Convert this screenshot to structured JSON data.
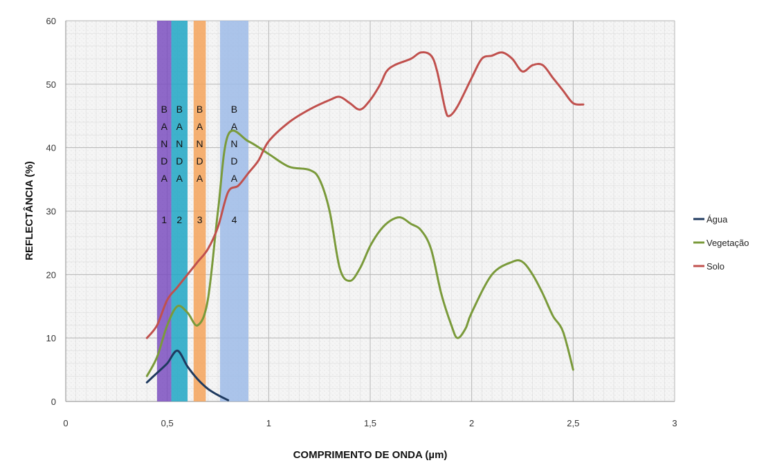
{
  "chart_data": {
    "type": "line",
    "xlabel": "COMPRIMENTO DE ONDA (µm)",
    "ylabel": "REFLECTÂNCIA (%)",
    "xlim": [
      0,
      3
    ],
    "ylim": [
      0,
      60
    ],
    "x_ticks": [
      0,
      0.5,
      1,
      1.5,
      2,
      2.5,
      3
    ],
    "x_tick_labels": [
      "0",
      "0,5",
      "1",
      "1,5",
      "2",
      "2,5",
      "3"
    ],
    "y_ticks": [
      0,
      10,
      20,
      30,
      40,
      50,
      60
    ],
    "y_tick_labels": [
      "0",
      "10",
      "20",
      "30",
      "40",
      "50",
      "60"
    ],
    "grid": true,
    "legend_position": "right",
    "bands": [
      {
        "letters": [
          "B",
          "A",
          "N",
          "D",
          "A"
        ],
        "number": "1",
        "x_start": 0.45,
        "x_end": 0.52,
        "color": "#7b4fbf"
      },
      {
        "letters": [
          "B",
          "A",
          "N",
          "D",
          "A"
        ],
        "number": "2",
        "x_start": 0.52,
        "x_end": 0.6,
        "color": "#1fa6c4"
      },
      {
        "letters": [
          "B",
          "A",
          "N",
          "D",
          "A"
        ],
        "number": "3",
        "x_start": 0.63,
        "x_end": 0.69,
        "color": "#f5a35a"
      },
      {
        "letters": [
          "B",
          "A",
          "N",
          "D",
          "A"
        ],
        "number": "4",
        "x_start": 0.76,
        "x_end": 0.9,
        "color": "#9dbbe8"
      }
    ],
    "series": [
      {
        "name": "Água",
        "color": "#1f3a5f",
        "points": [
          [
            0.4,
            3
          ],
          [
            0.45,
            4.5
          ],
          [
            0.5,
            6
          ],
          [
            0.55,
            8
          ],
          [
            0.6,
            5.5
          ],
          [
            0.65,
            3.5
          ],
          [
            0.7,
            2
          ],
          [
            0.75,
            1
          ],
          [
            0.8,
            0.2
          ]
        ]
      },
      {
        "name": "Vegetação",
        "color": "#7a9a3a",
        "points": [
          [
            0.4,
            4
          ],
          [
            0.45,
            7
          ],
          [
            0.5,
            12
          ],
          [
            0.55,
            15
          ],
          [
            0.6,
            14
          ],
          [
            0.65,
            12
          ],
          [
            0.7,
            16
          ],
          [
            0.75,
            30
          ],
          [
            0.8,
            42
          ],
          [
            0.9,
            41
          ],
          [
            1.0,
            39
          ],
          [
            1.1,
            37
          ],
          [
            1.2,
            36.5
          ],
          [
            1.25,
            35
          ],
          [
            1.3,
            30
          ],
          [
            1.35,
            21
          ],
          [
            1.4,
            19
          ],
          [
            1.45,
            21
          ],
          [
            1.5,
            24.5
          ],
          [
            1.55,
            27
          ],
          [
            1.6,
            28.5
          ],
          [
            1.65,
            29
          ],
          [
            1.7,
            28
          ],
          [
            1.75,
            27
          ],
          [
            1.8,
            24
          ],
          [
            1.85,
            17
          ],
          [
            1.9,
            12
          ],
          [
            1.93,
            10
          ],
          [
            1.97,
            11.5
          ],
          [
            2.0,
            14
          ],
          [
            2.1,
            20
          ],
          [
            2.2,
            22
          ],
          [
            2.25,
            22
          ],
          [
            2.3,
            20
          ],
          [
            2.35,
            17
          ],
          [
            2.4,
            13.5
          ],
          [
            2.45,
            11
          ],
          [
            2.5,
            5
          ]
        ]
      },
      {
        "name": "Solo",
        "color": "#c0504d",
        "points": [
          [
            0.4,
            10
          ],
          [
            0.45,
            12
          ],
          [
            0.5,
            16
          ],
          [
            0.55,
            18
          ],
          [
            0.6,
            20
          ],
          [
            0.65,
            22
          ],
          [
            0.7,
            24
          ],
          [
            0.75,
            27.5
          ],
          [
            0.8,
            33
          ],
          [
            0.85,
            34
          ],
          [
            0.9,
            36
          ],
          [
            0.95,
            38
          ],
          [
            1.0,
            41
          ],
          [
            1.1,
            44
          ],
          [
            1.2,
            46
          ],
          [
            1.3,
            47.5
          ],
          [
            1.35,
            48
          ],
          [
            1.4,
            47
          ],
          [
            1.45,
            46
          ],
          [
            1.5,
            47.5
          ],
          [
            1.55,
            50
          ],
          [
            1.58,
            52
          ],
          [
            1.62,
            53
          ],
          [
            1.7,
            54
          ],
          [
            1.75,
            55
          ],
          [
            1.8,
            54.5
          ],
          [
            1.83,
            52
          ],
          [
            1.87,
            46
          ],
          [
            1.89,
            45
          ],
          [
            1.93,
            46.5
          ],
          [
            2.0,
            51
          ],
          [
            2.05,
            54
          ],
          [
            2.1,
            54.5
          ],
          [
            2.15,
            55
          ],
          [
            2.2,
            54
          ],
          [
            2.25,
            52
          ],
          [
            2.3,
            53
          ],
          [
            2.35,
            53
          ],
          [
            2.4,
            51
          ],
          [
            2.45,
            49
          ],
          [
            2.5,
            47
          ],
          [
            2.55,
            46.8
          ]
        ]
      }
    ]
  }
}
